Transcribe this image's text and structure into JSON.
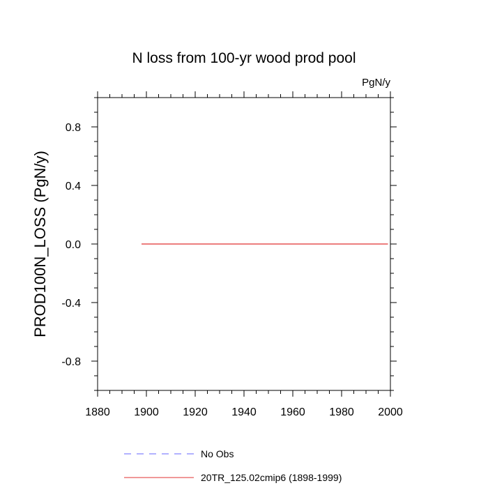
{
  "chart_data": {
    "type": "line",
    "title": "N loss from 100-yr wood prod pool",
    "units": "PgN/y",
    "ylabel": "PROD100N_LOSS  (PgN/y)",
    "xlabel": "",
    "xlim": [
      1880,
      2000
    ],
    "ylim": [
      -1.0,
      1.0
    ],
    "x_ticks": [
      1880,
      1900,
      1920,
      1940,
      1960,
      1980,
      2000
    ],
    "x_tick_labels": [
      "1880",
      "1900",
      "1920",
      "1940",
      "1960",
      "1980",
      "2000"
    ],
    "y_ticks": [
      0.8,
      0.4,
      0.0,
      -0.4,
      -0.8
    ],
    "y_tick_labels": [
      "0.8",
      "0.4",
      "0.0",
      "-0.4",
      "-0.8"
    ],
    "grid": false,
    "legend_position": "bottom",
    "series": [
      {
        "name": "No Obs",
        "color": "#6666ff",
        "dash": "dashed",
        "x": [],
        "y": []
      },
      {
        "name": "20TR_125.02cmip6 (1898-1999)",
        "color": "#e03030",
        "dash": "solid",
        "x": [
          1898,
          1999
        ],
        "y": [
          0.0,
          0.0
        ]
      }
    ]
  }
}
